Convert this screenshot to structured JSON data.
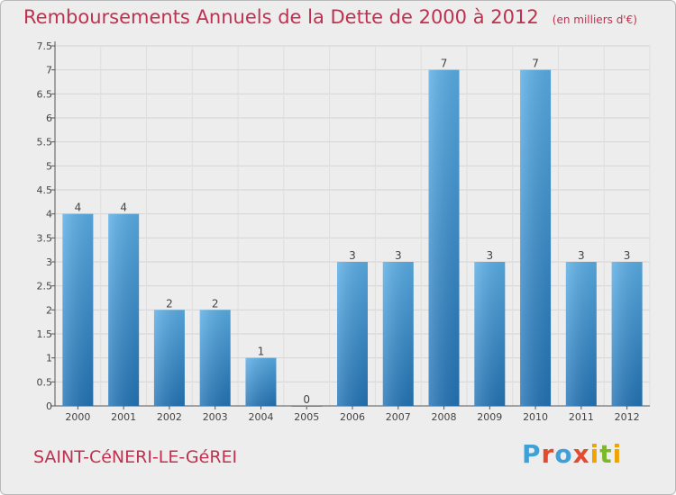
{
  "header": {
    "title": "Remboursements Annuels de la Dette de 2000 à 2012",
    "subtitle": "(en milliers d'€)"
  },
  "footer": {
    "commune": "SAINT-CéNERI-LE-GéREI",
    "logo": "Proxiti"
  },
  "colors": {
    "bar_top": "#5aaee6",
    "bar_bottom": "#2374b6",
    "title": "#c0304f",
    "background": "#ededed"
  },
  "chart_data": {
    "type": "bar",
    "title": "Remboursements Annuels de la Dette de 2000 à 2012",
    "subtitle": "(en milliers d'€)",
    "categories": [
      "2000",
      "2001",
      "2002",
      "2003",
      "2004",
      "2005",
      "2006",
      "2007",
      "2008",
      "2009",
      "2010",
      "2011",
      "2012"
    ],
    "values": [
      4,
      4,
      2,
      2,
      1,
      0,
      3,
      3,
      7,
      3,
      7,
      3,
      3
    ],
    "data_labels": [
      "4",
      "4",
      "2",
      "2",
      "1",
      "0",
      "3",
      "3",
      "7",
      "3",
      "7",
      "3",
      "3"
    ],
    "ylim": [
      0,
      7.5
    ],
    "yticks": [
      "0",
      "0.5",
      "1",
      "1.5",
      "2",
      "2.5",
      "3",
      "3.5",
      "4",
      "4.5",
      "5",
      "5.5",
      "6",
      "6.5",
      "7",
      "7.5"
    ],
    "grid": true,
    "legend": "none"
  }
}
